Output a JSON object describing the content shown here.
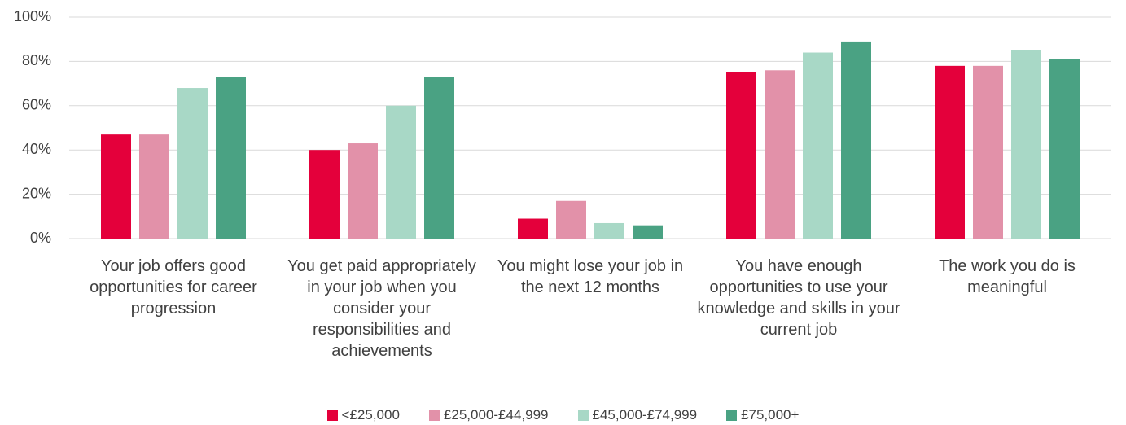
{
  "chart_data": {
    "type": "bar",
    "categories": [
      "Your job offers good opportunities for career progression",
      "You get paid appropriately in your job when you consider your responsibilities and achievements",
      "You might lose your job in the next 12 months",
      "You have enough opportunities to use your knowledge and skills in your current job",
      "The work you do is meaningful"
    ],
    "series": [
      {
        "name": "<£25,000",
        "color": "#e4003b",
        "values": [
          47,
          40,
          9,
          75,
          78
        ]
      },
      {
        "name": "£25,000-£44,999",
        "color": "#e291a9",
        "values": [
          47,
          43,
          17,
          76,
          78
        ]
      },
      {
        "name": "£45,000-£74,999",
        "color": "#a8d8c6",
        "values": [
          68,
          60,
          7,
          84,
          85
        ]
      },
      {
        "name": "£75,000+",
        "color": "#4aa283",
        "values": [
          73,
          73,
          6,
          89,
          81
        ]
      }
    ],
    "ylim": [
      0,
      100
    ],
    "yticks": [
      {
        "value": 0,
        "label": "0%"
      },
      {
        "value": 20,
        "label": "20%"
      },
      {
        "value": 40,
        "label": "40%"
      },
      {
        "value": 60,
        "label": "60%"
      },
      {
        "value": 80,
        "label": "80%"
      },
      {
        "value": 100,
        "label": "100%"
      }
    ],
    "grid": true,
    "legend": "bottom"
  }
}
